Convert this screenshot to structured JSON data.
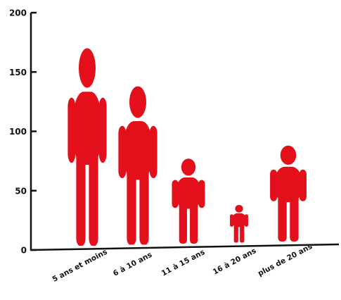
{
  "chart_data": {
    "type": "bar",
    "title": "",
    "xlabel": "",
    "ylabel": "",
    "categories": [
      "5 ans et moins",
      "6 à 10 ans",
      "11 à 15 ans",
      "16 à 20 ans",
      "plus de 20 ans"
    ],
    "values": [
      170,
      138,
      77,
      38,
      88
    ],
    "ylim": [
      0,
      200
    ],
    "yticks": [
      "0",
      "50",
      "100",
      "150",
      "200"
    ],
    "grid": false,
    "legend": "none",
    "mark_style": "pictogram-person",
    "colors": {
      "bar": "#e3101c",
      "axis": "#111111",
      "text": "#111111"
    }
  }
}
